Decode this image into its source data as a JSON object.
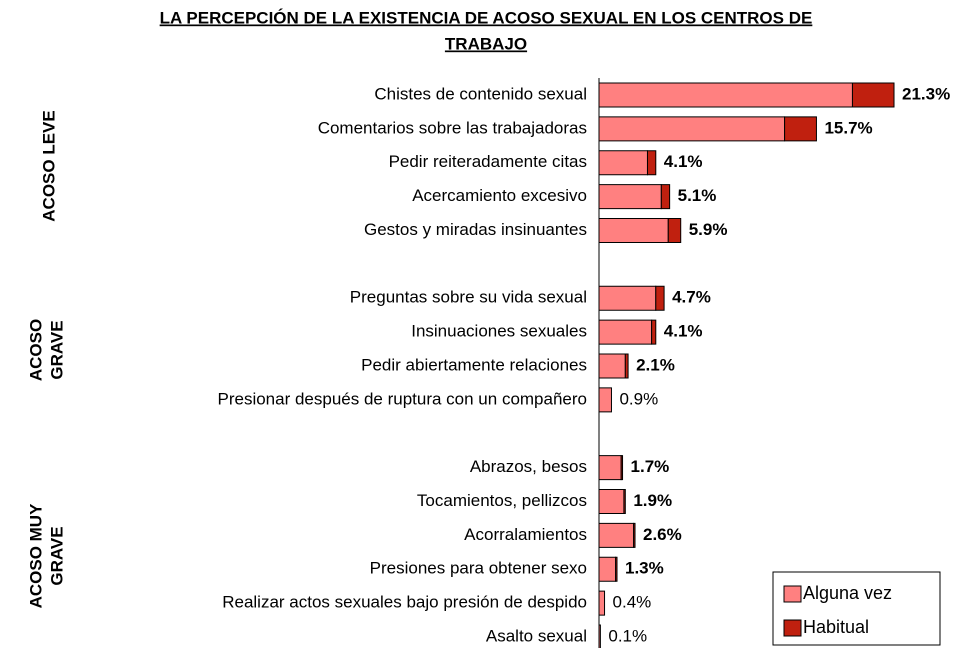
{
  "chart_data": {
    "type": "bar",
    "orientation": "horizontal",
    "stacked": true,
    "title": [
      "LA PERCEPCIÓN DE LA EXISTENCIA DE ACOSO SEXUAL EN LOS CENTROS DE",
      "TRABAJO"
    ],
    "groups": [
      [
        "ACOSO LEVE"
      ],
      [
        "ACOSO",
        "GRAVE"
      ],
      [
        "ACOSO MUY",
        "GRAVE"
      ]
    ],
    "categories": [
      "Chistes de contenido sexual",
      "Comentarios sobre las trabajadoras",
      "Pedir reiteradamente citas",
      "Acercamiento excesivo",
      "Gestos y miradas insinuantes",
      null,
      "Preguntas sobre su vida sexual",
      "Insinuaciones sexuales",
      "Pedir abiertamente relaciones",
      "Presionar después de ruptura con un compañero",
      null,
      "Abrazos, besos",
      "Tocamientos, pellizcos",
      "Acorralamientos",
      "Presiones para obtener sexo",
      "Realizar actos sexuales bajo presión de despido",
      "Asalto sexual"
    ],
    "series": [
      {
        "name": "Alguna vez",
        "color": "#ff8080",
        "values": [
          18.3,
          13.4,
          3.5,
          4.5,
          5.0,
          null,
          4.1,
          3.8,
          1.9,
          0.9,
          null,
          1.6,
          1.8,
          2.5,
          1.2,
          0.4,
          0.1
        ]
      },
      {
        "name": "Habitual",
        "color": "#c0200f",
        "values": [
          3.0,
          2.3,
          0.6,
          0.6,
          0.9,
          null,
          0.6,
          0.3,
          0.2,
          0,
          null,
          0.1,
          0.1,
          0.1,
          0.1,
          0,
          0
        ]
      }
    ],
    "totals": [
      21.3,
      15.7,
      4.1,
      5.1,
      5.9,
      null,
      4.7,
      4.1,
      2.1,
      0.9,
      null,
      1.7,
      1.9,
      2.6,
      1.3,
      0.4,
      0.1
    ],
    "total_labels": [
      "21.3%",
      "15.7%",
      "4.1%",
      "5.1%",
      "5.9%",
      null,
      "4.7%",
      "4.1%",
      "2.1%",
      "0.9%",
      null,
      "1.7%",
      "1.9%",
      "2.6%",
      "1.3%",
      "0.4%",
      "0.1%"
    ],
    "legend": "bottom-right"
  }
}
